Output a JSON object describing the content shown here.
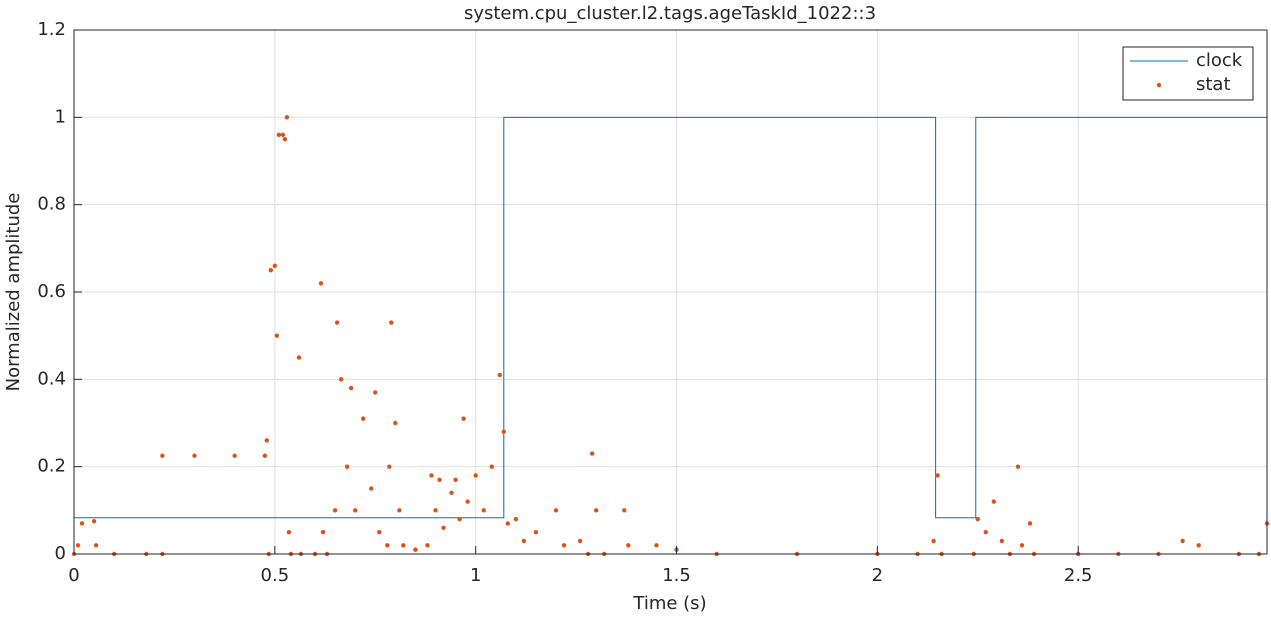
{
  "chart_data": {
    "type": "line",
    "title": "system.cpu_cluster.l2.tags.ageTaskId_1022::3",
    "x_label": "Time (s)",
    "y_label": "Normalized amplitude",
    "xlim": [
      0,
      2.97
    ],
    "ylim": [
      0,
      1.2
    ],
    "xticks": [
      0,
      0.5,
      1,
      1.5,
      2,
      2.5
    ],
    "yticks": [
      0,
      0.2,
      0.4,
      0.6,
      0.8,
      1,
      1.2
    ],
    "grid": true,
    "legend": "top-right",
    "series": [
      {
        "name": "clock",
        "color": "#0072bd",
        "style": "line",
        "x": [
          0,
          1.07,
          1.07,
          2.145,
          2.145,
          2.245,
          2.245,
          2.97
        ],
        "values": [
          0.083,
          0.083,
          1,
          1,
          0.083,
          0.083,
          1,
          1
        ]
      },
      {
        "name": "stat",
        "color": "#d95319",
        "style": "dots",
        "x": [
          0,
          0.01,
          0.02,
          0.05,
          0.055,
          0.1,
          0.18,
          0.22,
          0.22,
          0.3,
          0.4,
          0.475,
          0.48,
          0.485,
          0.49,
          0.5,
          0.505,
          0.51,
          0.52,
          0.525,
          0.53,
          0.535,
          0.54,
          0.56,
          0.565,
          0.6,
          0.615,
          0.62,
          0.63,
          0.65,
          0.655,
          0.665,
          0.68,
          0.69,
          0.7,
          0.72,
          0.74,
          0.75,
          0.76,
          0.78,
          0.785,
          0.79,
          0.8,
          0.81,
          0.82,
          0.85,
          0.88,
          0.89,
          0.9,
          0.91,
          0.92,
          0.94,
          0.95,
          0.96,
          0.97,
          0.98,
          1.0,
          1.02,
          1.04,
          1.06,
          1.07,
          1.08,
          1.1,
          1.12,
          1.15,
          1.2,
          1.22,
          1.26,
          1.28,
          1.29,
          1.3,
          1.32,
          1.37,
          1.38,
          1.45,
          1.5,
          1.6,
          1.8,
          2.0,
          2.1,
          2.14,
          2.15,
          2.16,
          2.24,
          2.25,
          2.27,
          2.29,
          2.31,
          2.33,
          2.35,
          2.36,
          2.38,
          2.39,
          2.5,
          2.6,
          2.7,
          2.76,
          2.8,
          2.9,
          2.95,
          2.97
        ],
        "values": [
          0,
          0.02,
          0.07,
          0.075,
          0.02,
          0,
          0,
          0,
          0.225,
          0.225,
          0.225,
          0.225,
          0.26,
          0,
          0.65,
          0.66,
          0.5,
          0.96,
          0.96,
          0.95,
          1.0,
          0.05,
          0,
          0.45,
          0,
          0,
          0.62,
          0.05,
          0,
          0.1,
          0.53,
          0.4,
          0.2,
          0.38,
          0.1,
          0.31,
          0.15,
          0.37,
          0.05,
          0.02,
          0.2,
          0.53,
          0.3,
          0.1,
          0.02,
          0.01,
          0.02,
          0.18,
          0.1,
          0.17,
          0.06,
          0.14,
          0.17,
          0.08,
          0.31,
          0.12,
          0.18,
          0.1,
          0.2,
          0.41,
          0.28,
          0.07,
          0.08,
          0.03,
          0.05,
          0.1,
          0.02,
          0.03,
          0,
          0.23,
          0.1,
          0,
          0.1,
          0.02,
          0.02,
          0.01,
          0,
          0,
          0,
          0,
          0.03,
          0.18,
          0,
          0,
          0.08,
          0.05,
          0.12,
          0.03,
          0,
          0.2,
          0.02,
          0.07,
          0,
          0,
          0,
          0,
          0.03,
          0.02,
          0,
          0,
          0.07
        ]
      }
    ]
  }
}
